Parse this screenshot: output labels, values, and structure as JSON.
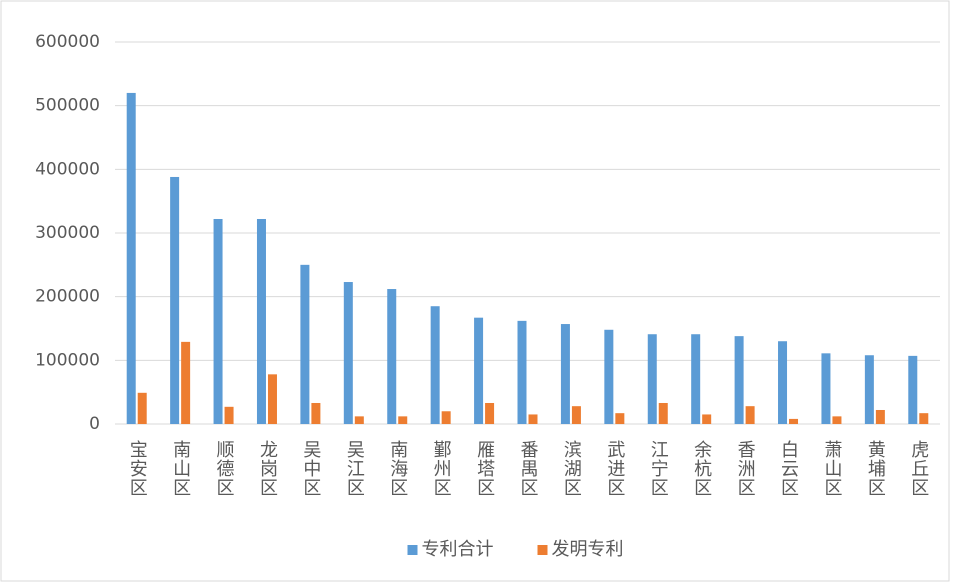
{
  "chart_data": {
    "type": "bar",
    "categories": [
      "宝安区",
      "南山区",
      "顺德区",
      "龙岗区",
      "吴中区",
      "吴江区",
      "南海区",
      "鄞州区",
      "雁塔区",
      "番禺区",
      "滨湖区",
      "武进区",
      "江宁区",
      "余杭区",
      "香洲区",
      "白云区",
      "萧山区",
      "黄埔区",
      "虎丘区"
    ],
    "series": [
      {
        "name": "专利合计",
        "color": "#5b9bd5",
        "values": [
          520000,
          388000,
          322000,
          322000,
          250000,
          223000,
          212000,
          185000,
          167000,
          162000,
          157000,
          148000,
          141000,
          141000,
          138000,
          130000,
          111000,
          108000,
          107000
        ]
      },
      {
        "name": "发明专利",
        "color": "#ed7d31",
        "values": [
          49000,
          129000,
          27000,
          78000,
          33000,
          12000,
          12000,
          20000,
          33000,
          15000,
          28000,
          17000,
          33000,
          15000,
          28000,
          8000,
          12000,
          22000,
          17000
        ]
      }
    ],
    "ylim": [
      0,
      600000
    ],
    "yticks": [
      0,
      100000,
      200000,
      300000,
      400000,
      500000,
      600000
    ],
    "grid": true,
    "legend": "bottom"
  }
}
